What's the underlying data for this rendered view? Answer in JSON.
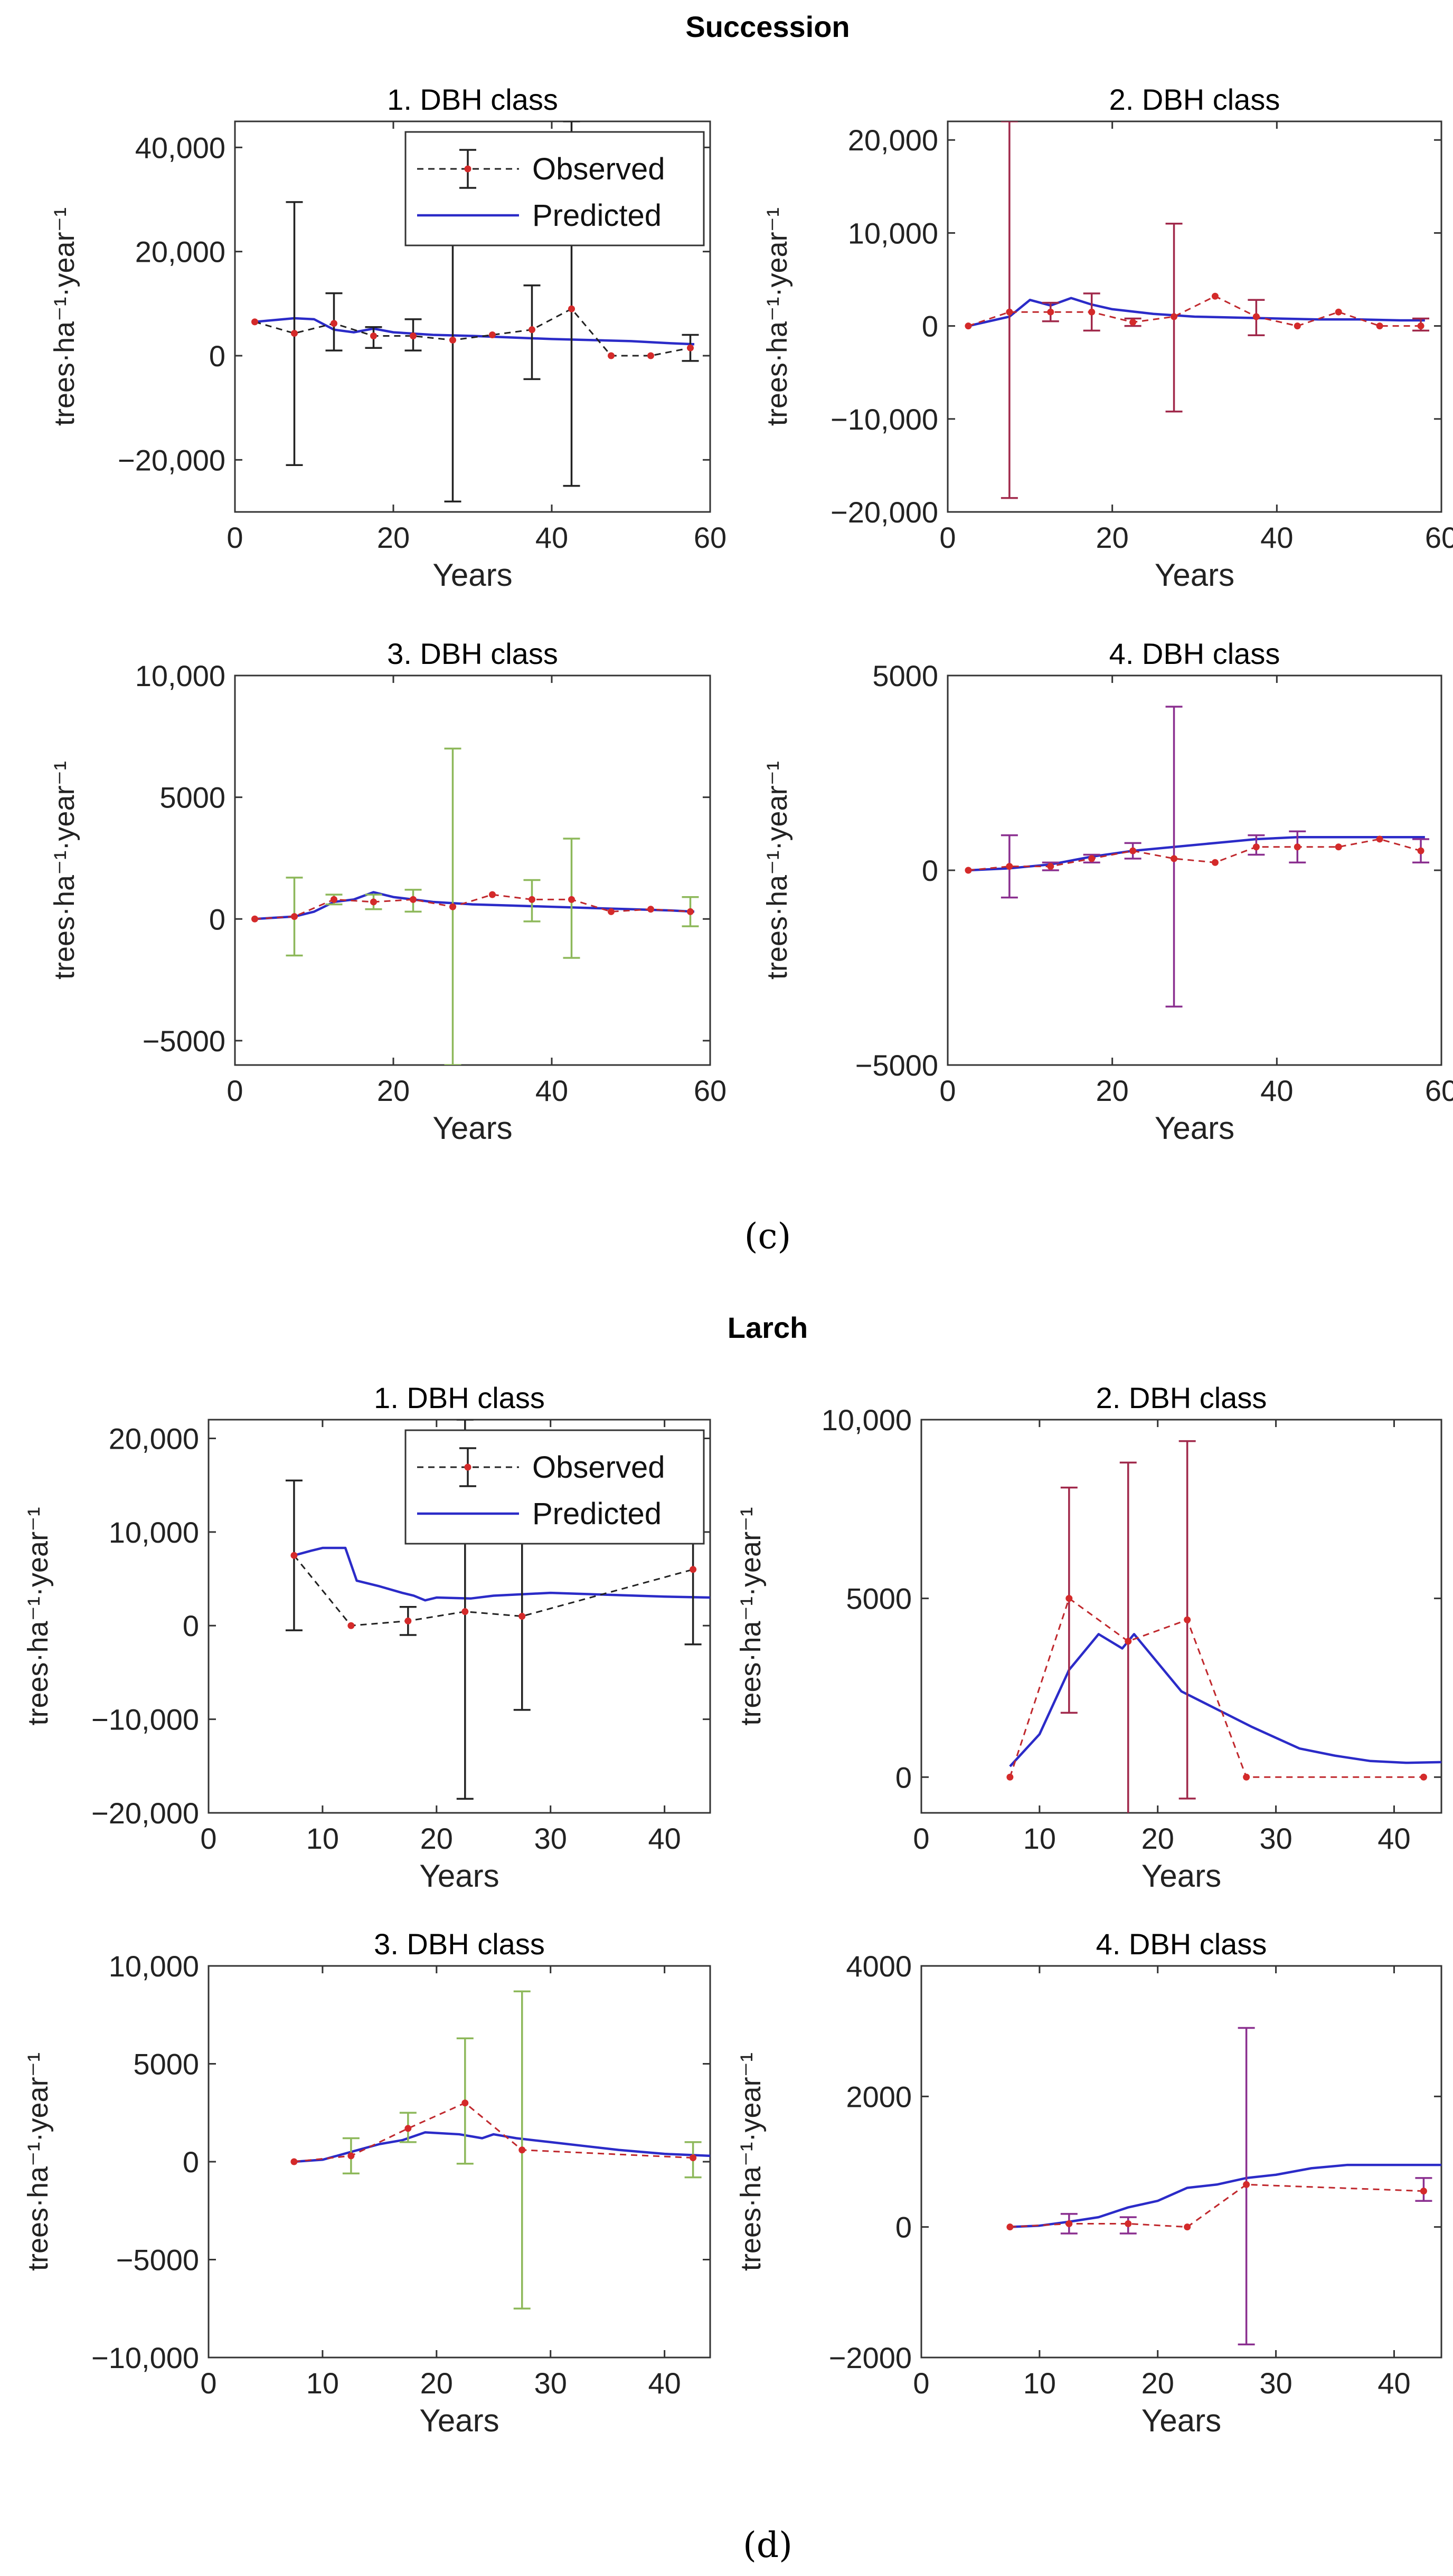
{
  "figure": {
    "groups": [
      {
        "title": "Succession",
        "label": "(c)"
      },
      {
        "title": "Larch",
        "label": "(d)"
      }
    ]
  },
  "chart_data": [
    {
      "type": "line",
      "group": "Succession",
      "title": "1. DBH class",
      "xlabel": "Years",
      "ylabel": "trees·ha⁻¹·year⁻¹",
      "xlim": [
        0,
        60
      ],
      "ylim": [
        -30000,
        45000
      ],
      "xticks": [
        0,
        20,
        40,
        60
      ],
      "yticks": [
        -20000,
        0,
        20000,
        40000
      ],
      "ytick_labels": [
        "−20,000",
        "0",
        "20,000",
        "40,000"
      ],
      "obs_color": "#222222",
      "err_color": "#222222",
      "pred_color": "#2b2bc8",
      "legend": {
        "observed": "Observed",
        "predicted": "Predicted"
      },
      "observed": {
        "x": [
          2.5,
          7.5,
          12.5,
          17.5,
          22.5,
          27.5,
          32.5,
          37.5,
          42.5,
          47.5,
          52.5,
          57.5
        ],
        "y": [
          6500,
          4300,
          6200,
          3800,
          3800,
          3000,
          4000,
          5000,
          9000,
          0,
          0,
          1500
        ],
        "err_low": [
          null,
          -21000,
          1000,
          1500,
          1000,
          -28000,
          null,
          -4500,
          -25000,
          null,
          null,
          -1000
        ],
        "err_high": [
          null,
          29500,
          12000,
          5500,
          7000,
          40000,
          null,
          13500,
          45000,
          null,
          null,
          4000
        ]
      },
      "predicted": {
        "x": [
          2.5,
          7.5,
          10,
          12.5,
          15,
          17.5,
          20,
          25,
          30,
          35,
          40,
          45,
          50,
          55,
          58
        ],
        "y": [
          6500,
          7200,
          7000,
          5000,
          4500,
          5200,
          4500,
          4000,
          3800,
          3500,
          3200,
          3000,
          2800,
          2400,
          2200
        ]
      }
    },
    {
      "type": "line",
      "group": "Succession",
      "title": "2. DBH class",
      "xlabel": "Years",
      "ylabel": "trees·ha⁻¹·year⁻¹",
      "xlim": [
        0,
        60
      ],
      "ylim": [
        -20000,
        22000
      ],
      "xticks": [
        0,
        20,
        40,
        60
      ],
      "yticks": [
        -20000,
        -10000,
        0,
        10000,
        20000
      ],
      "ytick_labels": [
        "−20,000",
        "−10,000",
        "0",
        "10,000",
        "20,000"
      ],
      "obs_color": "#c0282d",
      "err_color": "#a0284a",
      "pred_color": "#2b2bc8",
      "observed": {
        "x": [
          2.5,
          7.5,
          12.5,
          17.5,
          22.5,
          27.5,
          32.5,
          37.5,
          42.5,
          47.5,
          52.5,
          57.5
        ],
        "y": [
          0,
          1500,
          1500,
          1500,
          400,
          1000,
          3200,
          1000,
          0,
          1500,
          0,
          0
        ],
        "err_low": [
          null,
          -18500,
          500,
          -500,
          0,
          -9200,
          null,
          -1000,
          null,
          null,
          null,
          -500
        ],
        "err_high": [
          null,
          22000,
          2500,
          3500,
          800,
          11000,
          null,
          2800,
          null,
          null,
          null,
          800
        ]
      },
      "predicted": {
        "x": [
          2.5,
          7.5,
          10,
          12.5,
          15,
          17.5,
          20,
          25,
          30,
          35,
          40,
          45,
          50,
          55,
          58
        ],
        "y": [
          0,
          1000,
          2800,
          2200,
          3000,
          2300,
          1800,
          1300,
          1000,
          900,
          800,
          700,
          700,
          600,
          600
        ]
      }
    },
    {
      "type": "line",
      "group": "Succession",
      "title": "3. DBH class",
      "xlabel": "Years",
      "ylabel": "trees·ha⁻¹·year⁻¹",
      "xlim": [
        0,
        60
      ],
      "ylim": [
        -6000,
        10000
      ],
      "xticks": [
        0,
        20,
        40,
        60
      ],
      "yticks": [
        -5000,
        0,
        5000,
        10000
      ],
      "ytick_labels": [
        "−5000",
        "0",
        "5000",
        "10,000"
      ],
      "obs_color": "#c0282d",
      "err_color": "#8db85a",
      "pred_color": "#2b2bc8",
      "observed": {
        "x": [
          2.5,
          7.5,
          12.5,
          17.5,
          22.5,
          27.5,
          32.5,
          37.5,
          42.5,
          47.5,
          52.5,
          57.5
        ],
        "y": [
          0,
          100,
          800,
          700,
          800,
          500,
          1000,
          800,
          800,
          300,
          400,
          300
        ],
        "err_low": [
          null,
          -1500,
          600,
          400,
          300,
          -6000,
          null,
          -100,
          -1600,
          null,
          null,
          -300
        ],
        "err_high": [
          null,
          1700,
          1000,
          1000,
          1200,
          7000,
          null,
          1600,
          3300,
          null,
          null,
          900
        ]
      },
      "predicted": {
        "x": [
          2.5,
          7.5,
          10,
          12.5,
          15,
          17.5,
          20,
          25,
          30,
          35,
          40,
          45,
          50,
          55,
          58
        ],
        "y": [
          0,
          100,
          300,
          700,
          800,
          1100,
          900,
          700,
          600,
          550,
          500,
          450,
          400,
          350,
          300
        ]
      }
    },
    {
      "type": "line",
      "group": "Succession",
      "title": "4. DBH class",
      "xlabel": "Years",
      "ylabel": "trees·ha⁻¹·year⁻¹",
      "xlim": [
        0,
        60
      ],
      "ylim": [
        -5000,
        5000
      ],
      "xticks": [
        0,
        20,
        40,
        60
      ],
      "yticks": [
        -5000,
        0,
        5000
      ],
      "ytick_labels": [
        "−5000",
        "0",
        "5000"
      ],
      "obs_color": "#c0282d",
      "err_color": "#8a2f8f",
      "pred_color": "#2b2bc8",
      "observed": {
        "x": [
          2.5,
          7.5,
          12.5,
          17.5,
          22.5,
          27.5,
          32.5,
          37.5,
          42.5,
          47.5,
          52.5,
          57.5
        ],
        "y": [
          0,
          100,
          100,
          300,
          500,
          300,
          200,
          600,
          600,
          600,
          800,
          500
        ],
        "err_low": [
          null,
          -700,
          0,
          200,
          300,
          -3500,
          null,
          400,
          200,
          null,
          null,
          200
        ],
        "err_high": [
          null,
          900,
          200,
          400,
          700,
          4200,
          null,
          900,
          1000,
          null,
          null,
          800
        ]
      },
      "predicted": {
        "x": [
          2.5,
          7.5,
          12.5,
          17.5,
          22.5,
          27.5,
          32.5,
          37.5,
          42.5,
          47.5,
          52.5,
          58
        ],
        "y": [
          0,
          50,
          150,
          350,
          500,
          600,
          700,
          800,
          850,
          850,
          850,
          850
        ]
      }
    },
    {
      "type": "line",
      "group": "Larch",
      "title": "1. DBH class",
      "xlabel": "Years",
      "ylabel": "trees·ha⁻¹·year⁻¹",
      "xlim": [
        0,
        44
      ],
      "ylim": [
        -20000,
        22000
      ],
      "xticks": [
        0,
        10,
        20,
        30,
        40
      ],
      "yticks": [
        -20000,
        -10000,
        0,
        10000,
        20000
      ],
      "ytick_labels": [
        "−20,000",
        "−10,000",
        "0",
        "10,000",
        "20,000"
      ],
      "obs_color": "#222222",
      "err_color": "#222222",
      "pred_color": "#2b2bc8",
      "legend": {
        "observed": "Observed",
        "predicted": "Predicted"
      },
      "observed": {
        "x": [
          7.5,
          12.5,
          17.5,
          22.5,
          27.5,
          42.5
        ],
        "y": [
          7500,
          0,
          500,
          1500,
          1000,
          6000
        ],
        "err_low": [
          -500,
          null,
          -1000,
          -18500,
          -9000,
          -2000
        ],
        "err_high": [
          15500,
          null,
          2000,
          22000,
          11000,
          14000
        ]
      },
      "predicted": {
        "x": [
          7.5,
          9,
          10,
          12,
          13,
          15,
          17,
          18,
          19,
          20,
          23,
          25,
          30,
          35,
          40,
          44
        ],
        "y": [
          7500,
          8000,
          8300,
          8300,
          4800,
          4200,
          3500,
          3200,
          2700,
          3000,
          2900,
          3200,
          3500,
          3300,
          3100,
          3000
        ]
      }
    },
    {
      "type": "line",
      "group": "Larch",
      "title": "2. DBH class",
      "xlabel": "Years",
      "ylabel": "trees·ha⁻¹·year⁻¹",
      "xlim": [
        0,
        44
      ],
      "ylim": [
        -1000,
        10000
      ],
      "xticks": [
        0,
        10,
        20,
        30,
        40
      ],
      "yticks": [
        0,
        5000,
        10000
      ],
      "ytick_labels": [
        "0",
        "5000",
        "10,000"
      ],
      "obs_color": "#c0282d",
      "err_color": "#a0284a",
      "pred_color": "#2b2bc8",
      "observed": {
        "x": [
          7.5,
          12.5,
          17.5,
          22.5,
          27.5,
          42.5
        ],
        "y": [
          0,
          5000,
          3800,
          4400,
          0,
          0
        ],
        "err_low": [
          null,
          1800,
          -1200,
          -600,
          null,
          null
        ],
        "err_high": [
          null,
          8100,
          8800,
          9400,
          null,
          null
        ]
      },
      "predicted": {
        "x": [
          7.5,
          10,
          12.5,
          15,
          17,
          18,
          20,
          22,
          25,
          28,
          30,
          32,
          35,
          38,
          41,
          44
        ],
        "y": [
          300,
          1200,
          3000,
          4000,
          3600,
          4000,
          3200,
          2400,
          1900,
          1400,
          1100,
          800,
          600,
          450,
          400,
          420
        ]
      }
    },
    {
      "type": "line",
      "group": "Larch",
      "title": "3. DBH class",
      "xlabel": "Years",
      "ylabel": "trees·ha⁻¹·year⁻¹",
      "xlim": [
        0,
        44
      ],
      "ylim": [
        -10000,
        10000
      ],
      "xticks": [
        0,
        10,
        20,
        30,
        40
      ],
      "yticks": [
        -10000,
        -5000,
        0,
        5000,
        10000
      ],
      "ytick_labels": [
        "−10,000",
        "−5000",
        "0",
        "5000",
        "10,000"
      ],
      "obs_color": "#c0282d",
      "err_color": "#8db85a",
      "pred_color": "#2b2bc8",
      "observed": {
        "x": [
          7.5,
          12.5,
          17.5,
          22.5,
          27.5,
          42.5
        ],
        "y": [
          0,
          300,
          1700,
          3000,
          600,
          200
        ],
        "err_low": [
          null,
          -600,
          1000,
          -100,
          -7500,
          -800
        ],
        "err_high": [
          null,
          1200,
          2500,
          6300,
          8700,
          1000
        ]
      },
      "predicted": {
        "x": [
          7.5,
          10,
          12.5,
          15,
          17,
          19,
          22,
          24,
          25,
          27,
          30,
          33,
          36,
          40,
          44
        ],
        "y": [
          0,
          100,
          500,
          900,
          1100,
          1500,
          1400,
          1200,
          1400,
          1200,
          1000,
          800,
          600,
          400,
          300
        ]
      }
    },
    {
      "type": "line",
      "group": "Larch",
      "title": "4. DBH class",
      "xlabel": "Years",
      "ylabel": "trees·ha⁻¹·year⁻¹",
      "xlim": [
        0,
        44
      ],
      "ylim": [
        -2000,
        4000
      ],
      "xticks": [
        0,
        10,
        20,
        30,
        40
      ],
      "yticks": [
        -2000,
        0,
        2000,
        4000
      ],
      "ytick_labels": [
        "−2000",
        "0",
        "2000",
        "4000"
      ],
      "obs_color": "#c0282d",
      "err_color": "#8a2f8f",
      "pred_color": "#2b2bc8",
      "observed": {
        "x": [
          7.5,
          12.5,
          17.5,
          22.5,
          27.5,
          42.5
        ],
        "y": [
          0,
          50,
          50,
          0,
          650,
          550
        ],
        "err_low": [
          null,
          -100,
          -100,
          null,
          -1800,
          400
        ],
        "err_high": [
          null,
          200,
          150,
          null,
          3050,
          750
        ]
      },
      "predicted": {
        "x": [
          7.5,
          10,
          12.5,
          15,
          17.5,
          20,
          22.5,
          25,
          27.5,
          30,
          33,
          36,
          40,
          44
        ],
        "y": [
          0,
          20,
          80,
          150,
          300,
          400,
          600,
          650,
          750,
          800,
          900,
          950,
          950,
          950
        ]
      }
    }
  ]
}
